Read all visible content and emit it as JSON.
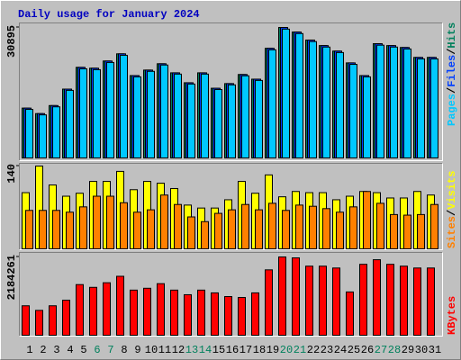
{
  "chart_data": [
    {
      "type": "bar",
      "title": "Daily usage for January 2024",
      "legend_separator": "/",
      "ylim": [
        0,
        30895
      ],
      "yticks": [
        30895
      ],
      "series": [
        {
          "name": "Hits",
          "color": "#00805c",
          "values": [
            11800,
            10500,
            12400,
            16300,
            21450,
            21250,
            22950,
            24650,
            19500,
            20800,
            22300,
            20150,
            17800,
            20150,
            16500,
            17600,
            19750,
            18650,
            25950,
            30895,
            29800,
            27900,
            26600,
            25300,
            22500,
            19500,
            27050,
            26600,
            26150,
            23800,
            23800
          ]
        },
        {
          "name": "Files",
          "color": "#0040ff",
          "values": [
            11800,
            10500,
            12400,
            16300,
            21450,
            21250,
            22950,
            24650,
            19500,
            20800,
            22300,
            20150,
            17800,
            20150,
            16500,
            17600,
            19750,
            18650,
            25950,
            30895,
            29800,
            27900,
            26600,
            25300,
            22500,
            19500,
            27050,
            26600,
            26150,
            23800,
            23800
          ]
        },
        {
          "name": "Pages",
          "color": "#00c8ff",
          "values": [
            11500,
            10200,
            12100,
            16000,
            21100,
            20900,
            22600,
            24300,
            19200,
            20500,
            22000,
            19850,
            17500,
            19850,
            16200,
            17300,
            19450,
            18350,
            25600,
            30500,
            29450,
            27550,
            26250,
            24950,
            22150,
            19200,
            26700,
            26250,
            25800,
            23450,
            23450
          ]
        }
      ]
    },
    {
      "type": "bar",
      "legend_separator": "/",
      "ylim": [
        0,
        140
      ],
      "yticks": [
        140
      ],
      "series": [
        {
          "name": "Visits",
          "color": "#ffff00",
          "values": [
            95,
            140,
            108,
            89,
            94,
            114,
            114,
            131,
            100,
            114,
            111,
            102,
            74,
            69,
            69,
            83,
            114,
            94,
            125,
            88,
            97,
            95,
            95,
            83,
            89,
            97,
            95,
            86,
            86,
            97,
            91
          ]
        },
        {
          "name": "Sites",
          "color": "#ff8000",
          "values": [
            65,
            65,
            65,
            62,
            71,
            89,
            89,
            78,
            62,
            66,
            91,
            75,
            54,
            46,
            60,
            66,
            75,
            66,
            77,
            65,
            74,
            72,
            68,
            62,
            71,
            97,
            77,
            58,
            57,
            58,
            75
          ]
        }
      ]
    },
    {
      "type": "bar",
      "ylim": [
        0,
        2184261
      ],
      "yticks": [
        2184261
      ],
      "categories": [
        "1",
        "2",
        "3",
        "4",
        "5",
        "6",
        "7",
        "8",
        "9",
        "10",
        "11",
        "12",
        "13",
        "14",
        "15",
        "16",
        "17",
        "18",
        "19",
        "20",
        "21",
        "22",
        "23",
        "24",
        "25",
        "26",
        "27",
        "28",
        "29",
        "30",
        "31"
      ],
      "category_colors": [
        "#000000",
        "#000000",
        "#000000",
        "#000000",
        "#000000",
        "#00805c",
        "#00805c",
        "#000000",
        "#000000",
        "#000000",
        "#000000",
        "#000000",
        "#00805c",
        "#00805c",
        "#000000",
        "#000000",
        "#000000",
        "#000000",
        "#000000",
        "#00805c",
        "#00805c",
        "#000000",
        "#000000",
        "#000000",
        "#000000",
        "#000000",
        "#00805c",
        "#00805c",
        "#000000",
        "#000000",
        "#000000"
      ],
      "series": [
        {
          "name": "KBytes",
          "color": "#ff0000",
          "values": [
            822300,
            693800,
            822300,
            976500,
            1413300,
            1336200,
            1464700,
            1644600,
            1259100,
            1310600,
            1439000,
            1259100,
            1130700,
            1259100,
            1182000,
            1079300,
            1053600,
            1182000,
            1824500,
            2184261,
            2158500,
            1927300,
            1927300,
            1875900,
            1207800,
            1978700,
            2107100,
            1978700,
            1927300,
            1875900,
            1875900
          ]
        }
      ]
    }
  ]
}
